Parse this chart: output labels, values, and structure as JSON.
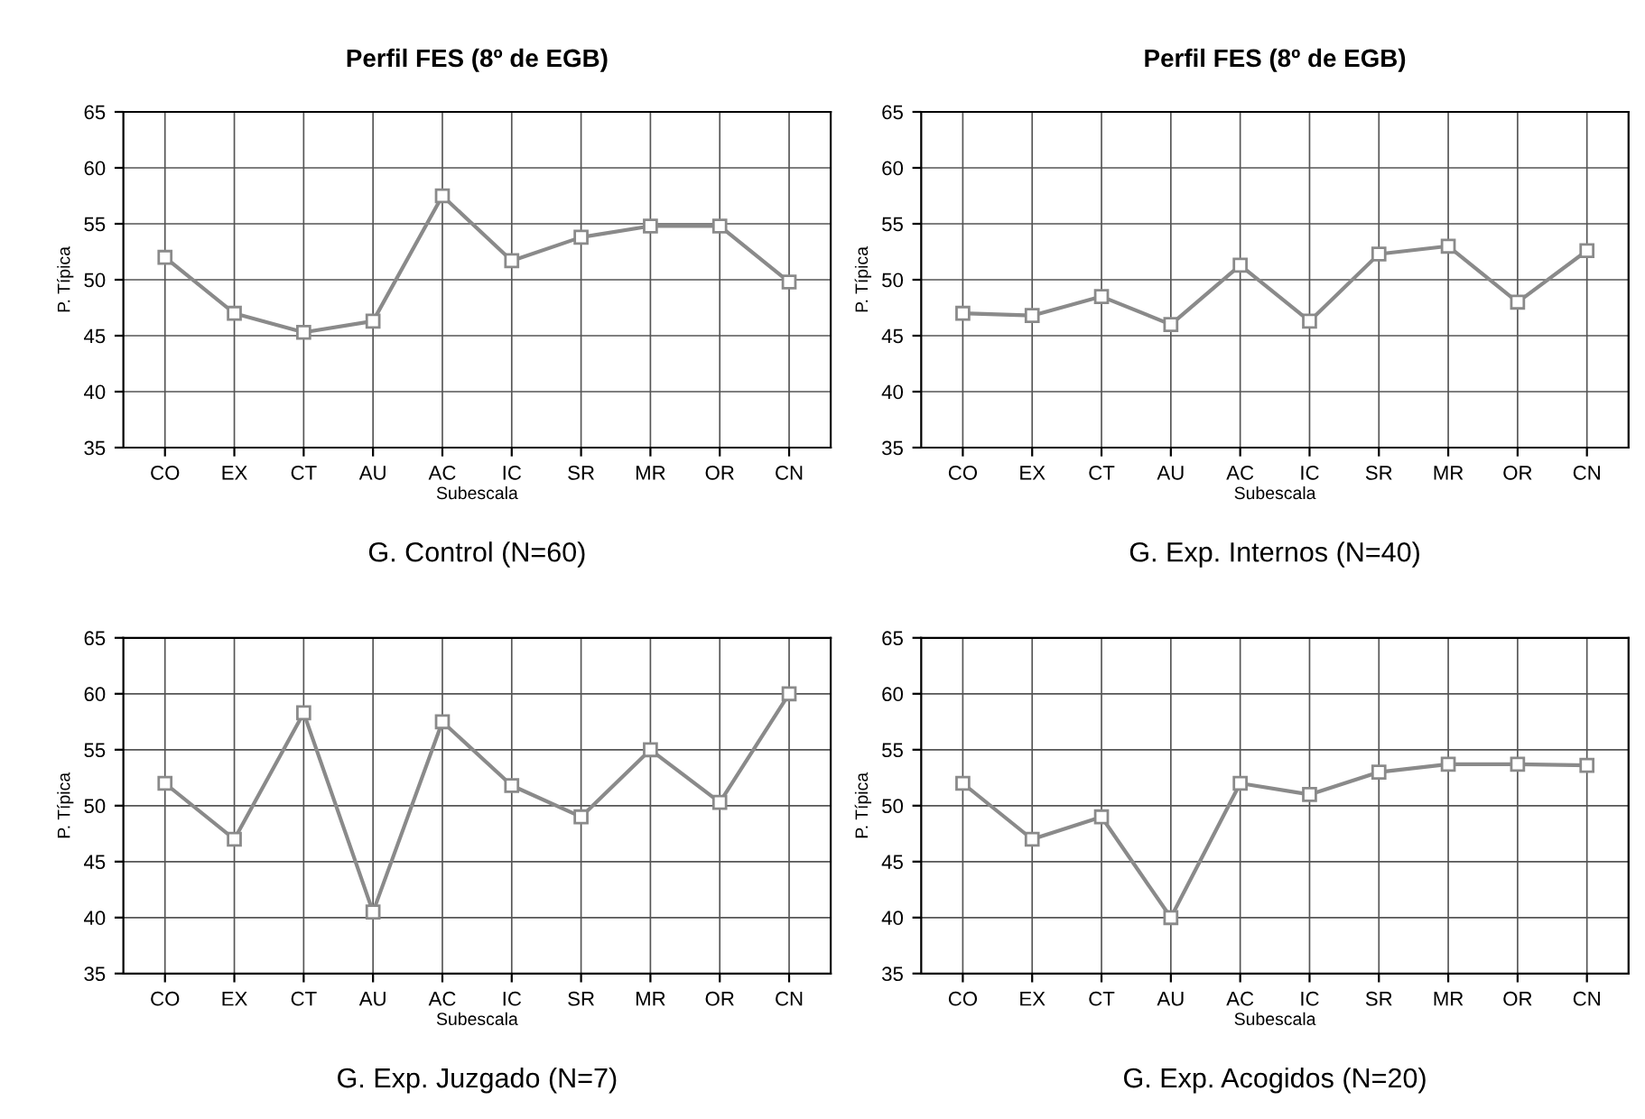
{
  "chart_data": [
    {
      "type": "line",
      "title": "Perfil FES (8º de EGB)",
      "xlabel": "Subescala",
      "ylabel": "P. Típica",
      "categories": [
        "CO",
        "EX",
        "CT",
        "AU",
        "AC",
        "IC",
        "SR",
        "MR",
        "OR",
        "CN"
      ],
      "series": [
        {
          "color": "#8a8a8a",
          "values": [
            52,
            47,
            45.3,
            46.3,
            57.5,
            51.7,
            53.8,
            54.8,
            54.8,
            49.8
          ]
        }
      ],
      "ylim": [
        35,
        65
      ],
      "yticks": [
        35,
        40,
        45,
        50,
        55,
        60,
        65
      ],
      "grid": true,
      "marker": "square",
      "line_style": "solid",
      "annotations": [
        "G. Control (N=60)"
      ]
    },
    {
      "type": "line",
      "title": "Perfil FES (8º de EGB)",
      "xlabel": "Subescala",
      "ylabel": "P. Típica",
      "categories": [
        "CO",
        "EX",
        "CT",
        "AU",
        "AC",
        "IC",
        "SR",
        "MR",
        "OR",
        "CN"
      ],
      "series": [
        {
          "color": "#8a8a8a",
          "values": [
            47,
            46.8,
            48.5,
            46,
            51.3,
            46.3,
            52.3,
            53,
            48,
            52.6
          ]
        }
      ],
      "ylim": [
        35,
        65
      ],
      "yticks": [
        35,
        40,
        45,
        50,
        55,
        60,
        65
      ],
      "grid": true,
      "marker": "square",
      "line_style": "solid",
      "annotations": [
        "G. Exp. Internos (N=40)"
      ]
    },
    {
      "type": "line",
      "xlabel": "Subescala",
      "ylabel": "P. Típica",
      "categories": [
        "CO",
        "EX",
        "CT",
        "AU",
        "AC",
        "IC",
        "SR",
        "MR",
        "OR",
        "CN"
      ],
      "series": [
        {
          "color": "#8a8a8a",
          "values": [
            52,
            47,
            58.3,
            40.5,
            57.5,
            51.8,
            49,
            55,
            50.3,
            60
          ]
        }
      ],
      "ylim": [
        35,
        65
      ],
      "yticks": [
        35,
        40,
        45,
        50,
        55,
        60,
        65
      ],
      "grid": true,
      "marker": "square",
      "line_style": "solid",
      "annotations": [
        "G. Exp. Juzgado (N=7)"
      ]
    },
    {
      "type": "line",
      "xlabel": "Subescala",
      "ylabel": "P. Típica",
      "categories": [
        "CO",
        "EX",
        "CT",
        "AU",
        "AC",
        "IC",
        "SR",
        "MR",
        "OR",
        "CN"
      ],
      "series": [
        {
          "color": "#8a8a8a",
          "values": [
            52,
            47,
            49,
            40,
            52,
            51,
            53,
            53.7,
            53.7,
            53.6
          ]
        }
      ],
      "ylim": [
        35,
        65
      ],
      "yticks": [
        35,
        40,
        45,
        50,
        55,
        60,
        65
      ],
      "grid": true,
      "marker": "square",
      "line_style": "solid",
      "annotations": [
        "G. Exp. Acogidos (N=20)"
      ]
    }
  ]
}
